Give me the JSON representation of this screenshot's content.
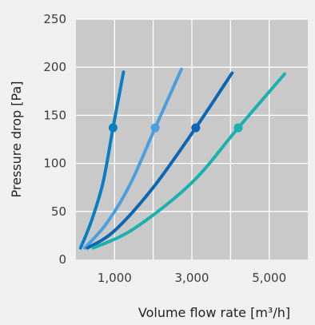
{
  "chart_data": {
    "type": "line",
    "xlabel": "Volume flow rate [m³/h]",
    "ylabel": "Pressure drop [Pa]",
    "xlim": [
      0,
      6000
    ],
    "ylim": [
      0,
      250
    ],
    "grid": true,
    "x_ticks": [
      1000,
      2000,
      3000,
      4000,
      5000,
      6000
    ],
    "x_tick_labels": [
      "1,000",
      "",
      "3,000",
      "",
      "5,000",
      ""
    ],
    "y_ticks": [
      0,
      50,
      100,
      150,
      200,
      250
    ],
    "y_tick_labels": [
      "0",
      "50",
      "100",
      "150",
      "200",
      "250"
    ],
    "series": [
      {
        "color": "#0a7ec2",
        "x": [
          120,
          400,
          700,
          960,
          1230
        ],
        "y": [
          12,
          40,
          80,
          137,
          195
        ],
        "marker": {
          "x": 960,
          "y": 137
        }
      },
      {
        "color": "#4a9fdc",
        "x": [
          230,
          800,
          1400,
          2050,
          2730
        ],
        "y": [
          12,
          38,
          78,
          137,
          198
        ],
        "marker": {
          "x": 2050,
          "y": 137
        }
      },
      {
        "color": "#0d66b2",
        "x": [
          300,
          1000,
          2000,
          3100,
          4040
        ],
        "y": [
          12,
          30,
          75,
          137,
          194
        ],
        "marker": {
          "x": 3100,
          "y": 137
        }
      },
      {
        "color": "#1bb0b0",
        "x": [
          450,
          1500,
          3000,
          4200,
          5400
        ],
        "y": [
          12,
          32,
          80,
          137,
          193
        ],
        "marker": {
          "x": 4200,
          "y": 137
        }
      }
    ]
  }
}
